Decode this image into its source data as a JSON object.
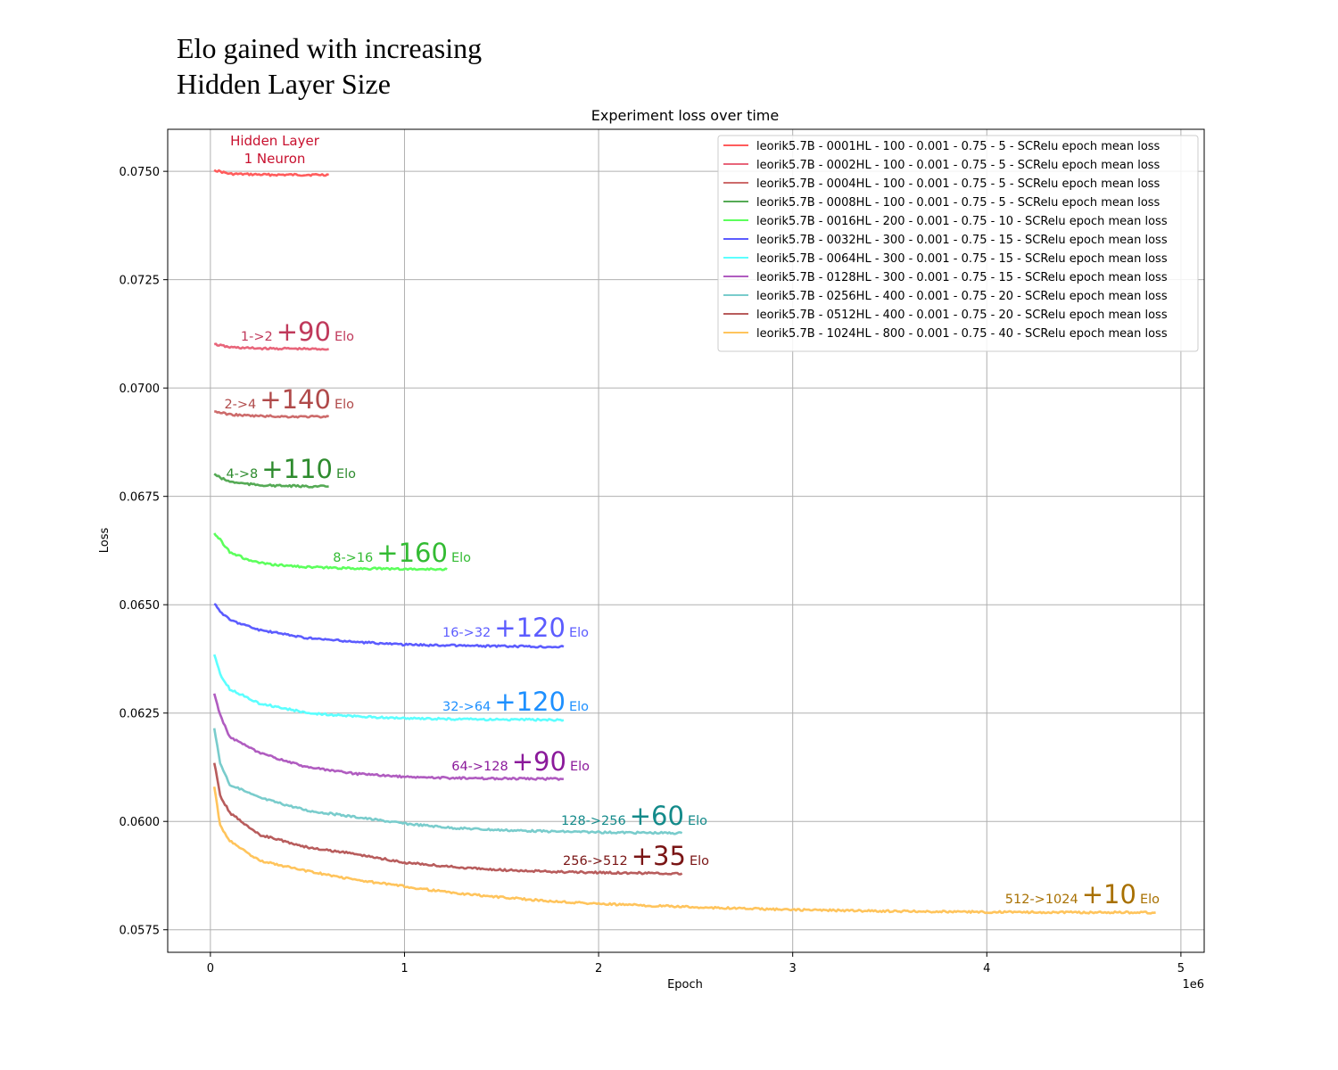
{
  "headline": {
    "line1": "Elo gained with increasing",
    "line2": "Hidden Layer Size"
  },
  "chart_data": {
    "type": "line",
    "title": "Experiment loss over time",
    "xlabel": "Epoch",
    "ylabel": "Loss",
    "x_offset_label": "1e6",
    "xlim": [
      -0.22,
      5.12
    ],
    "ylim": [
      0.05698,
      0.07597
    ],
    "x_ticks": [
      0,
      1,
      2,
      3,
      4,
      5
    ],
    "x_tick_labels": [
      "0",
      "1",
      "2",
      "3",
      "4",
      "5"
    ],
    "y_ticks": [
      0.0575,
      0.06,
      0.0625,
      0.065,
      0.0675,
      0.07,
      0.0725,
      0.075
    ],
    "y_tick_labels": [
      "0.0575",
      "0.0600",
      "0.0625",
      "0.0650",
      "0.0675",
      "0.0700",
      "0.0725",
      "0.0750"
    ],
    "grid": true,
    "legend_position": "top-right",
    "x_unit_note": "x values in millions of epochs",
    "series": [
      {
        "name": "leorik5.7B - 0001HL - 100 - 0.001 - 0.75 - 5 - SCRelu epoch mean loss",
        "color": "#ff5c5c",
        "x": [
          0.02,
          0.1,
          0.2,
          0.3,
          0.4,
          0.5,
          0.61
        ],
        "y": [
          0.07503,
          0.07494,
          0.07493,
          0.07492,
          0.07492,
          0.07492,
          0.07492
        ]
      },
      {
        "name": "leorik5.7B - 0002HL - 100 - 0.001 - 0.75 - 5 - SCRelu epoch mean loss",
        "color": "#e8657a",
        "x": [
          0.02,
          0.1,
          0.2,
          0.3,
          0.4,
          0.5,
          0.61
        ],
        "y": [
          0.07101,
          0.07094,
          0.07092,
          0.07091,
          0.07091,
          0.0709,
          0.0709
        ]
      },
      {
        "name": "leorik5.7B - 0004HL - 100 - 0.001 - 0.75 - 5 - SCRelu epoch mean loss",
        "color": "#cd6b6b",
        "x": [
          0.02,
          0.1,
          0.2,
          0.3,
          0.4,
          0.5,
          0.61
        ],
        "y": [
          0.06946,
          0.06939,
          0.06936,
          0.06935,
          0.06934,
          0.06934,
          0.06934
        ]
      },
      {
        "name": "leorik5.7B - 0008HL - 100 - 0.001 - 0.75 - 5 - SCRelu epoch mean loss",
        "color": "#55aa55",
        "x": [
          0.02,
          0.05,
          0.1,
          0.2,
          0.3,
          0.4,
          0.5,
          0.61
        ],
        "y": [
          0.06802,
          0.06793,
          0.06784,
          0.06778,
          0.06775,
          0.06774,
          0.06773,
          0.06773
        ]
      },
      {
        "name": "leorik5.7B - 0016HL - 200 - 0.001 - 0.75 - 10 - SCRelu epoch mean loss",
        "color": "#5cff5c",
        "x": [
          0.02,
          0.05,
          0.1,
          0.2,
          0.3,
          0.5,
          0.7,
          0.9,
          1.05,
          1.22
        ],
        "y": [
          0.06665,
          0.0665,
          0.06622,
          0.06602,
          0.06593,
          0.06587,
          0.06584,
          0.06583,
          0.06582,
          0.06582
        ]
      },
      {
        "name": "leorik5.7B - 0032HL - 300 - 0.001 - 0.75 - 15 - SCRelu epoch mean loss",
        "color": "#5c5cff",
        "x": [
          0.02,
          0.05,
          0.1,
          0.25,
          0.5,
          0.75,
          1.0,
          1.25,
          1.5,
          1.82
        ],
        "y": [
          0.06502,
          0.06485,
          0.06465,
          0.06442,
          0.06423,
          0.06414,
          0.06408,
          0.06406,
          0.06404,
          0.06403
        ]
      },
      {
        "name": "leorik5.7B - 0064HL - 300 - 0.001 - 0.75 - 15 - SCRelu epoch mean loss",
        "color": "#5cffff",
        "x": [
          0.02,
          0.05,
          0.1,
          0.25,
          0.5,
          0.75,
          1.0,
          1.25,
          1.5,
          1.82
        ],
        "y": [
          0.06385,
          0.0634,
          0.06305,
          0.06273,
          0.0625,
          0.06242,
          0.06238,
          0.06236,
          0.06235,
          0.06234
        ]
      },
      {
        "name": "leorik5.7B - 0128HL - 300 - 0.001 - 0.75 - 15 - SCRelu epoch mean loss",
        "color": "#b05cc0",
        "x": [
          0.02,
          0.05,
          0.1,
          0.25,
          0.5,
          0.75,
          1.0,
          1.25,
          1.5,
          1.82
        ],
        "y": [
          0.06295,
          0.06245,
          0.06195,
          0.06158,
          0.06125,
          0.0611,
          0.06103,
          0.061,
          0.06099,
          0.06098
        ]
      },
      {
        "name": "leorik5.7B - 0256HL - 400 - 0.001 - 0.75 - 20 - SCRelu epoch mean loss",
        "color": "#79cccc",
        "x": [
          0.02,
          0.05,
          0.1,
          0.25,
          0.5,
          0.75,
          1.0,
          1.25,
          1.5,
          1.75,
          2.0,
          2.2,
          2.43
        ],
        "y": [
          0.06215,
          0.06135,
          0.06085,
          0.06055,
          0.06025,
          0.0601,
          0.05995,
          0.05985,
          0.0598,
          0.05977,
          0.05975,
          0.05974,
          0.05973
        ]
      },
      {
        "name": "leorik5.7B - 0512HL - 400 - 0.001 - 0.75 - 20 - SCRelu epoch mean loss",
        "color": "#b85c5c",
        "x": [
          0.02,
          0.05,
          0.1,
          0.25,
          0.5,
          0.75,
          1.0,
          1.25,
          1.5,
          1.75,
          2.0,
          2.2,
          2.43
        ],
        "y": [
          0.06135,
          0.0606,
          0.0602,
          0.0597,
          0.0594,
          0.05925,
          0.05905,
          0.05895,
          0.05888,
          0.05884,
          0.05882,
          0.05881,
          0.0588
        ]
      },
      {
        "name": "leorik5.7B - 1024HL - 800 - 0.001 - 0.75 - 40 - SCRelu epoch mean loss",
        "color": "#ffc45c",
        "x": [
          0.02,
          0.05,
          0.1,
          0.25,
          0.5,
          0.75,
          1.0,
          1.25,
          1.5,
          1.75,
          2.0,
          2.5,
          3.0,
          3.5,
          4.0,
          4.5,
          4.87
        ],
        "y": [
          0.0608,
          0.0599,
          0.05955,
          0.0591,
          0.05885,
          0.05865,
          0.0585,
          0.05835,
          0.05825,
          0.05816,
          0.0581,
          0.05802,
          0.05796,
          0.05793,
          0.05791,
          0.0579,
          0.0579
        ]
      }
    ],
    "annotations": [
      {
        "id": "hl1",
        "line1": "Hidden Layer",
        "line2": "1 Neuron",
        "color": "#c8102e"
      },
      {
        "id": "a2",
        "from": "1->2",
        "gain": "+90",
        "unit": "Elo",
        "color": "#c0395b"
      },
      {
        "id": "a4",
        "from": "2->4",
        "gain": "+140",
        "unit": "Elo",
        "color": "#b04a4a"
      },
      {
        "id": "a8",
        "from": "4->8",
        "gain": "+110",
        "unit": "Elo",
        "color": "#2e8b2e"
      },
      {
        "id": "a16",
        "from": "8->16",
        "gain": "+160",
        "unit": "Elo",
        "color": "#33bb33"
      },
      {
        "id": "a32",
        "from": "16->32",
        "gain": "+120",
        "unit": "Elo",
        "color": "#5c5cff"
      },
      {
        "id": "a64",
        "from": "32->64",
        "gain": "+120",
        "unit": "Elo",
        "color": "#1e90ff"
      },
      {
        "id": "a128",
        "from": "64->128",
        "gain": "+90",
        "unit": "Elo",
        "color": "#8b1a9b"
      },
      {
        "id": "a256",
        "from": "128->256",
        "gain": "+60",
        "unit": "Elo",
        "color": "#138a8a"
      },
      {
        "id": "a512",
        "from": "256->512",
        "gain": "+35",
        "unit": "Elo",
        "color": "#7a1515"
      },
      {
        "id": "a1024",
        "from": "512->1024",
        "gain": "+10",
        "unit": "Elo",
        "color": "#a87000"
      }
    ]
  }
}
